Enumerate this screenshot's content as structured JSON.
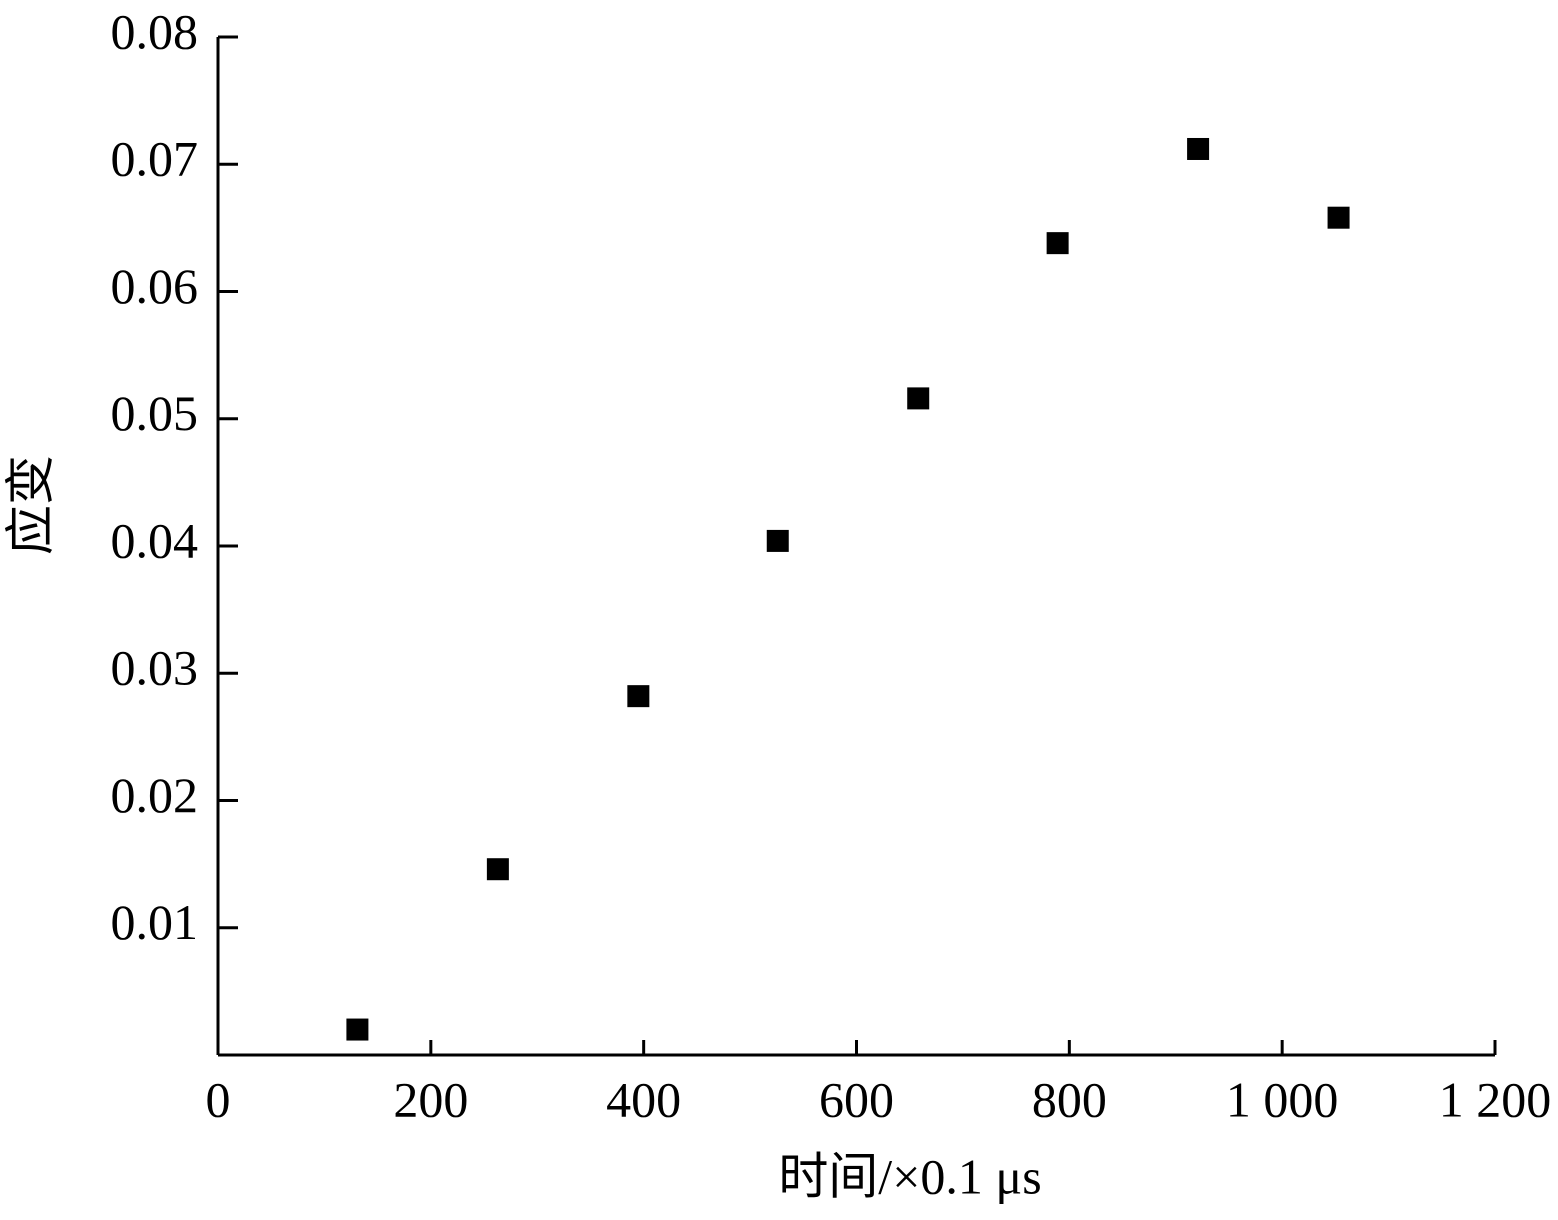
{
  "chart_data": {
    "type": "scatter",
    "x_label": "时间/×0.1 μs",
    "y_label": "应变",
    "color": "#000000",
    "x": [
      131,
      263,
      395,
      526,
      658,
      789,
      921,
      1053
    ],
    "values": [
      0.002,
      0.0146,
      0.0282,
      0.0404,
      0.0516,
      0.0638,
      0.0712,
      0.0658
    ],
    "xlim": [
      0,
      1200
    ],
    "xticks": [
      0,
      200,
      400,
      600,
      800,
      {
        "value": 1000,
        "label": "1 000"
      },
      {
        "value": 1200,
        "label": "1 200"
      }
    ],
    "ylim": [
      0,
      0.08
    ],
    "yticks": [
      0.01,
      0.02,
      0.03,
      0.04,
      0.05,
      0.06,
      0.07,
      0.08
    ]
  }
}
